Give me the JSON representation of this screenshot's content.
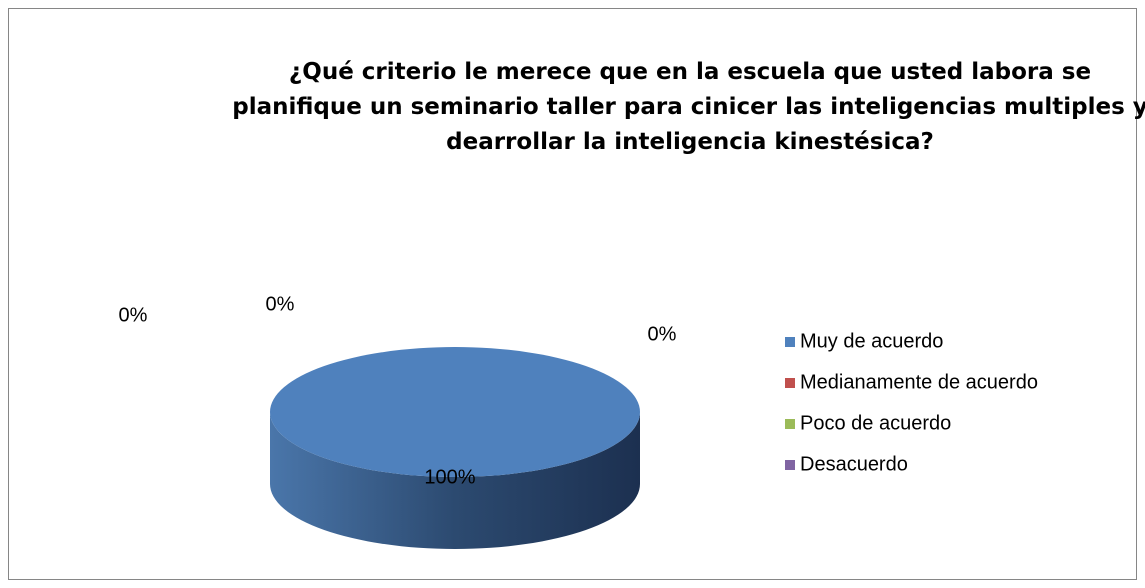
{
  "chart_data": {
    "type": "pie",
    "title": "¿Qué criterio le merece que en la escuela que usted labora se planifique un seminario taller para cinicer las inteligencias multiples y dearrollar la inteligencia kinestésica?",
    "categories": [
      "Muy de acuerdo",
      "Medianamente de acuerdo",
      "Poco de acuerdo",
      "Desacuerdo"
    ],
    "values": [
      100,
      0,
      0,
      0
    ],
    "value_labels": [
      "100%",
      "0%",
      "0%",
      "0%"
    ],
    "colors": [
      "#4f81bd",
      "#c0504d",
      "#9bbb59",
      "#8064a2"
    ],
    "legend": "right"
  }
}
